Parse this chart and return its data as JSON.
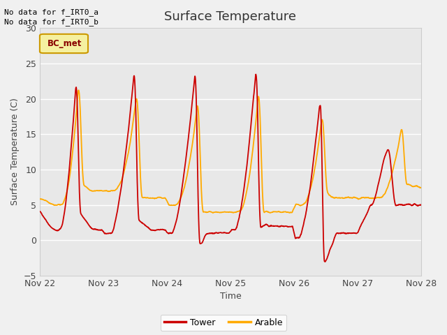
{
  "title": "Surface Temperature",
  "xlabel": "Time",
  "ylabel": "Surface Temperature (C)",
  "ylim": [
    -5,
    30
  ],
  "xlim": [
    0,
    6
  ],
  "xtick_positions": [
    0,
    1,
    2,
    3,
    4,
    5,
    6
  ],
  "xtick_labels": [
    "Nov 22",
    "Nov 23",
    "Nov 24",
    "Nov 25",
    "Nov 26",
    "Nov 27",
    "Nov 28"
  ],
  "ytick_positions": [
    -5,
    0,
    5,
    10,
    15,
    20,
    25,
    30
  ],
  "bg_color": "#e8e8e8",
  "tower_color": "#cc0000",
  "arable_color": "#ffaa00",
  "note_line1": "No data for f_IRT0_a",
  "note_line2": "No data for f_IRT0_b",
  "box_label": "BC_met",
  "legend_tower": "Tower",
  "legend_arable": "Arable",
  "grid_color": "#ffffff",
  "outer_bg": "#f0f0f0"
}
